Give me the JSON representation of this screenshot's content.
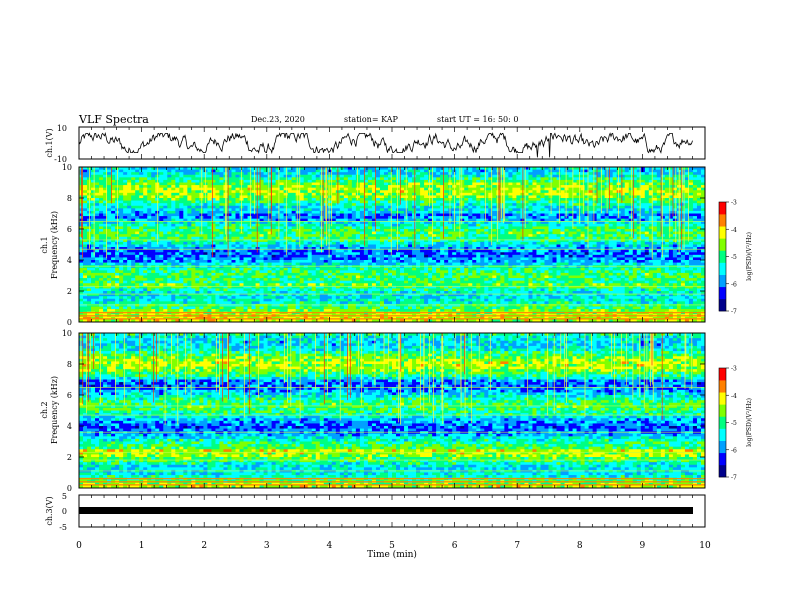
{
  "header": {
    "title": "VLF Spectra",
    "date": "Dec.23, 2020",
    "station": "station= KAP",
    "start": "start  UT =  16: 50: 0"
  },
  "chart_data": [
    {
      "type": "line",
      "panel": "ch1-waveform",
      "ylabel": "ch.1(V)",
      "ylim": [
        -10,
        10
      ],
      "yticks": [
        "10",
        "-10"
      ],
      "xlim": [
        0,
        9.8
      ]
    },
    {
      "type": "heatmap",
      "panel": "ch1-spectrogram",
      "ylabel_line1": "ch.1",
      "ylabel_line2": "Frequency (kHz)",
      "ylim": [
        0,
        10
      ],
      "yticks": [
        "0",
        "2",
        "4",
        "6",
        "8",
        "10"
      ],
      "colorbar": {
        "label": "log(PSD)(V²/Hz)",
        "range": [
          -7,
          -3
        ],
        "ticks": [
          "-3",
          "-4",
          "-5",
          "-6",
          "-7"
        ]
      }
    },
    {
      "type": "heatmap",
      "panel": "ch2-spectrogram",
      "ylabel_line1": "ch.2",
      "ylabel_line2": "Frequency (kHz)",
      "ylim": [
        0,
        10
      ],
      "yticks": [
        "0",
        "2",
        "4",
        "6",
        "8",
        "10"
      ],
      "colorbar": {
        "label": "log(PSD)(V²/Hz)",
        "range": [
          -7,
          -3
        ],
        "ticks": [
          "-3",
          "-4",
          "-5",
          "-6",
          "-7"
        ]
      }
    },
    {
      "type": "line",
      "panel": "ch3-waveform",
      "ylabel": "ch.3(V)",
      "ylim": [
        -5,
        5
      ],
      "yticks": [
        "5",
        "0",
        "-5"
      ]
    }
  ],
  "xaxis": {
    "label": "Time (min)",
    "range": [
      0,
      10
    ],
    "ticks": [
      "0",
      "1",
      "2",
      "3",
      "4",
      "5",
      "6",
      "7",
      "8",
      "9",
      "10"
    ]
  },
  "colors": {
    "colormap": [
      "#00008b",
      "#0000ff",
      "#00a0ff",
      "#00ffff",
      "#00ff80",
      "#80ff00",
      "#ffff00",
      "#ff8000",
      "#ff0000"
    ]
  }
}
